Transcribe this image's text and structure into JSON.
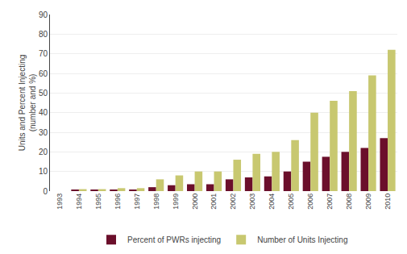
{
  "chart_data": {
    "type": "bar",
    "categories": [
      "1993",
      "1994",
      "1995",
      "1996",
      "1997",
      "1998",
      "1999",
      "2000",
      "2001",
      "2002",
      "2003",
      "2004",
      "2005",
      "2006",
      "2007",
      "2008",
      "2009",
      "2010"
    ],
    "series": [
      {
        "name": "Percent of PWRs injecting",
        "color": "#6B0F2B",
        "values": [
          0,
          0.5,
          0.5,
          0.5,
          0.5,
          2,
          3,
          3.5,
          3.5,
          6,
          7,
          7.5,
          10,
          15,
          17.5,
          20,
          22,
          27
        ]
      },
      {
        "name": "Number of Units Injecting",
        "color": "#C8C870",
        "values": [
          0,
          1,
          1,
          1.5,
          1.5,
          6,
          8,
          10,
          10,
          16,
          19,
          20,
          26,
          40,
          46,
          51,
          59,
          72
        ]
      }
    ],
    "ylabel": "Units and Percent Injecting\n(number and %)",
    "ylim": [
      0,
      90
    ],
    "yticks": [
      0,
      10,
      20,
      30,
      40,
      50,
      60,
      70,
      80,
      90
    ],
    "grid": true,
    "legend": "bottom"
  }
}
